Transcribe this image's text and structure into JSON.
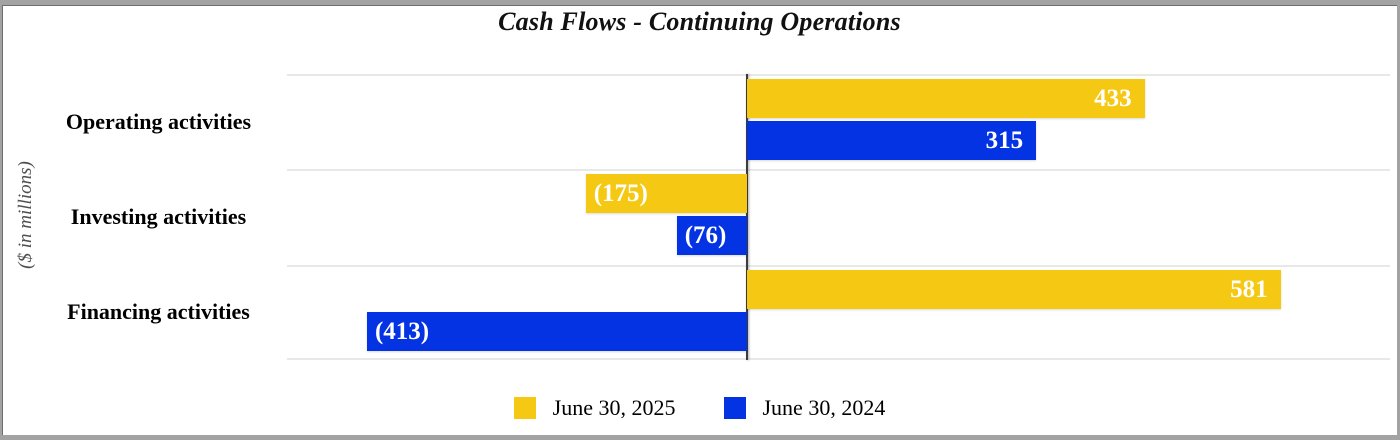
{
  "title": "Cash Flows - Continuing Operations",
  "y_axis_label": "($ in millions)",
  "chart_data": {
    "type": "bar",
    "orientation": "horizontal",
    "title": "Cash Flows - Continuing Operations",
    "categories": [
      "Operating activities",
      "Investing activities",
      "Financing activities"
    ],
    "series": [
      {
        "name": "June 30, 2025",
        "color": "#F5C913",
        "values": [
          433,
          -175,
          581
        ],
        "value_labels": [
          "433",
          "(175)",
          "581"
        ]
      },
      {
        "name": "June 30, 2024",
        "color": "#0433E3",
        "values": [
          315,
          -76,
          -413
        ],
        "value_labels": [
          "315",
          "(76)",
          "(413)"
        ]
      }
    ],
    "xlim": [
      -500,
      700
    ],
    "grid": "horizontal-row-separators",
    "legend_position": "bottom",
    "units": "$ in millions",
    "value_label_style": "inside-end, negatives shown in parentheses"
  },
  "legend": [
    {
      "label": "June 30, 2025"
    },
    {
      "label": "June 30, 2024"
    }
  ],
  "colors": {
    "background": "#FFFFFF",
    "frame_border": "#A3A3A3",
    "gridline": "#E8E8E8",
    "zero_line": "#3C3C3C",
    "category_label": "#000000",
    "value_label": "#FFFFFF",
    "axis_label": "#4F4F4F",
    "title": "#111111",
    "series_2025": "#F5C913",
    "series_2024": "#0433E3"
  }
}
